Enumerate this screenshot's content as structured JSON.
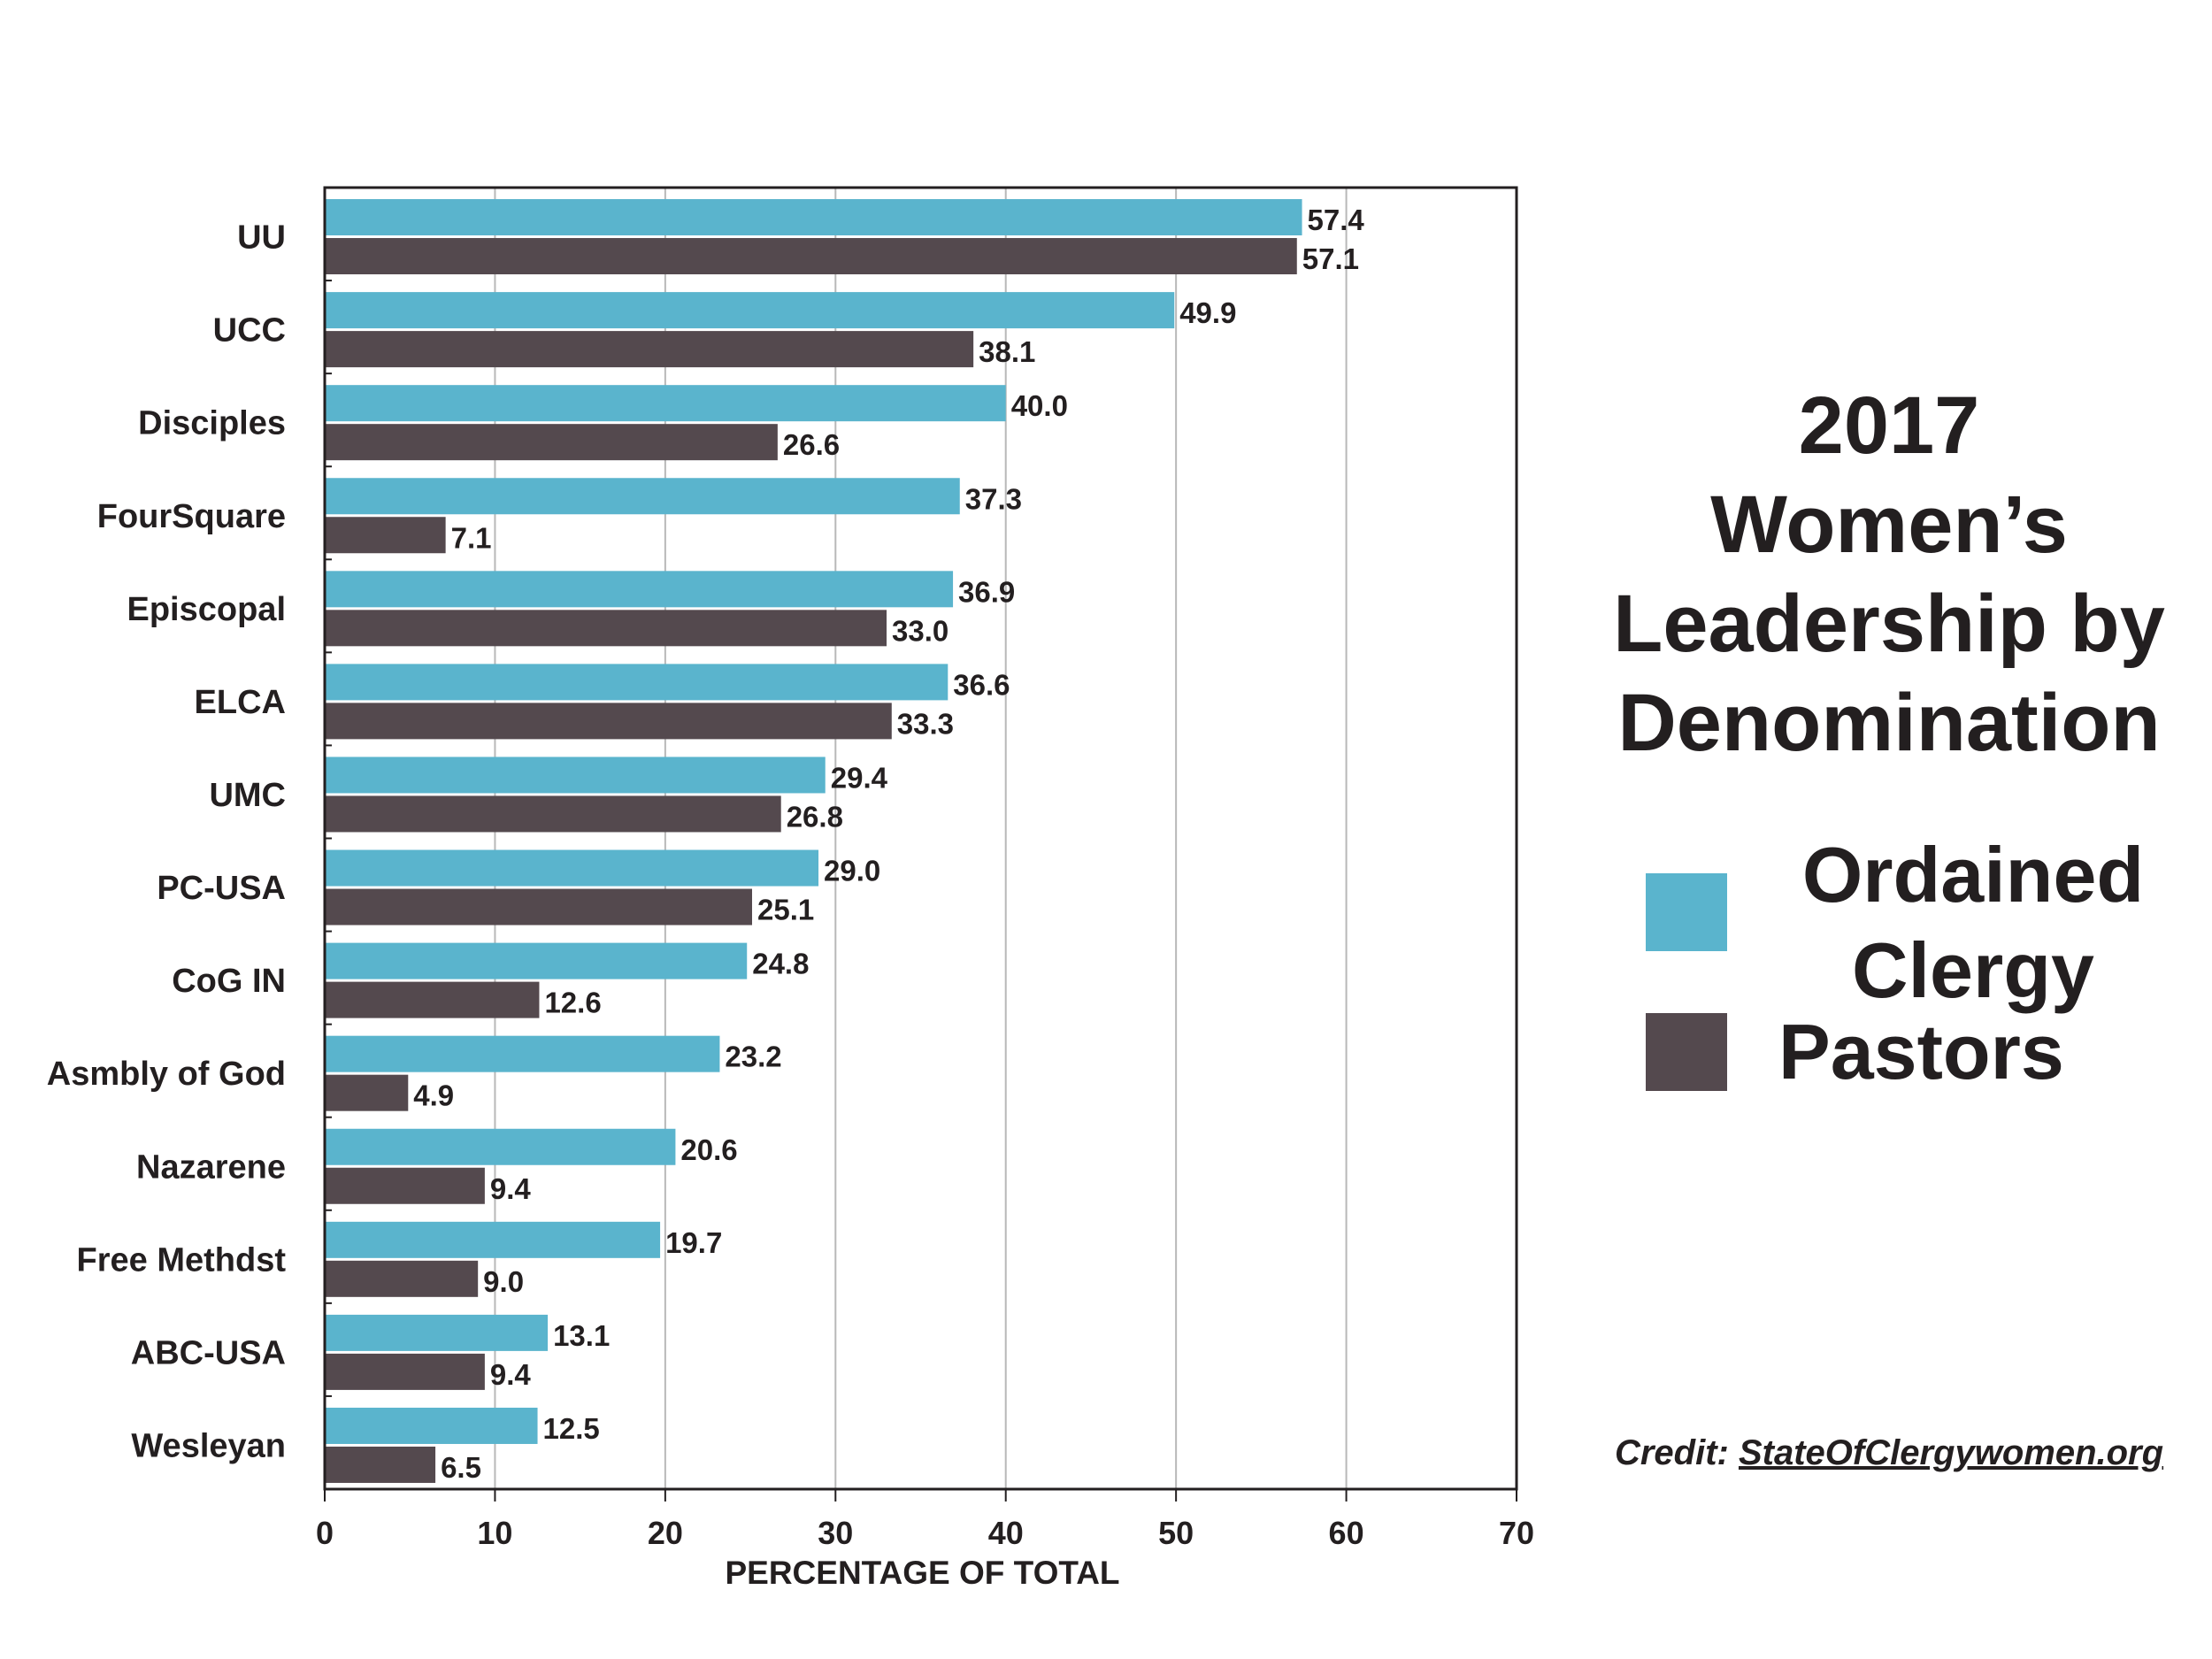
{
  "chart_data": {
    "type": "bar",
    "orientation": "horizontal",
    "title": "2017 Women’s Leadership by Denomination",
    "title_lines": [
      "2017",
      "Women’s",
      "Leadership by",
      "Denomination"
    ],
    "xlabel": "PERCENTAGE OF TOTAL",
    "xlim": [
      0,
      70
    ],
    "xticks": [
      0,
      10,
      20,
      30,
      40,
      50,
      60,
      70
    ],
    "grid": "vertical",
    "legend_position": "right",
    "categories": [
      "UU",
      "UCC",
      "Disciples",
      "FourSquare",
      "Episcopal",
      "ELCA",
      "UMC",
      "PC-USA",
      "CoG IN",
      "Asmbly of God",
      "Nazarene",
      "Free Methdst",
      "ABC-USA",
      "Wesleyan"
    ],
    "series": [
      {
        "name": "Ordained Clergy",
        "name_lines": [
          "Ordained",
          "Clergy"
        ],
        "color": "#5ab4cd",
        "values": [
          57.4,
          49.9,
          40.0,
          37.3,
          36.9,
          36.6,
          29.4,
          29.0,
          24.8,
          23.2,
          20.6,
          19.7,
          13.1,
          12.5
        ],
        "labels": [
          "57.4",
          "49.9",
          "40.0",
          "37.3",
          "36.9",
          "36.6",
          "29.4",
          "29.0",
          "24.8",
          "23.2",
          "20.6",
          "19.7",
          "13.1",
          "12.5"
        ]
      },
      {
        "name": "Pastors",
        "name_lines": [
          "Pastors"
        ],
        "color": "#54494e",
        "values": [
          57.1,
          38.1,
          26.6,
          7.1,
          33.0,
          33.3,
          26.8,
          25.1,
          12.6,
          4.9,
          9.4,
          9.0,
          9.4,
          6.5
        ],
        "labels": [
          "57.1",
          "38.1",
          "26.6",
          "7.1",
          "33.0",
          "33.3",
          "26.8",
          "25.1",
          "12.6",
          "4.9",
          "9.4",
          "9.0",
          "9.4",
          "6.5"
        ]
      }
    ]
  },
  "credit": {
    "prefix": "Credit:",
    "link": "StateOfClergywomen.org"
  }
}
